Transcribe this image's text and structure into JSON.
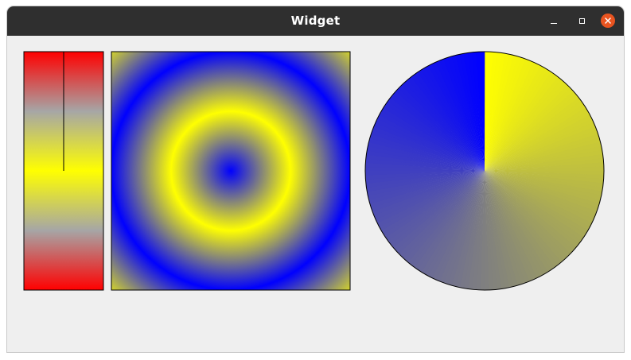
{
  "window": {
    "title": "Widget"
  },
  "icons": {
    "minimize": "minimize-icon",
    "maximize": "maximize-icon",
    "close": "close-icon"
  },
  "colors": {
    "titlebar": "#2f2f2f",
    "close_button": "#e95420",
    "window_background": "#efefef",
    "gradient_red": "#ff0000",
    "gradient_yellow": "#ffff00",
    "gradient_blue": "#0000ff"
  },
  "widgets": {
    "linear_gradient": {
      "type": "linear-reflect",
      "stops": [
        "#ff0000",
        "#ffff00",
        "#ff0000"
      ]
    },
    "radial_gradient": {
      "type": "radial-repeat",
      "stops": [
        "#0000ff",
        "#ffff00"
      ]
    },
    "conical_gradient": {
      "type": "conical",
      "stops": [
        "#ffff00",
        "#0000ff"
      ]
    }
  }
}
